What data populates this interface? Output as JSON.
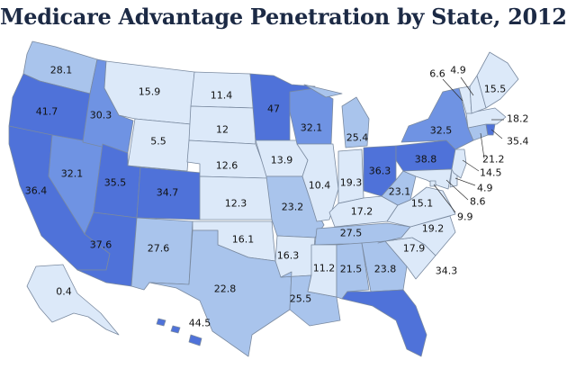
{
  "title": "Medicare Advantage Penetration by State, 2012",
  "colors": {
    "bin_lightest": "#dce9f9",
    "bin_light": "#a9c4ec",
    "bin_mid": "#6f93e3",
    "bin_dark": "#4f72d9",
    "border": "#7a8aa0",
    "text": "#111111"
  },
  "states": [
    {
      "state": "WA",
      "value": "28.1"
    },
    {
      "state": "OR",
      "value": "41.7"
    },
    {
      "state": "CA",
      "value": "36.4"
    },
    {
      "state": "NV",
      "value": "32.1"
    },
    {
      "state": "ID",
      "value": "30.3"
    },
    {
      "state": "MT",
      "value": "15.9"
    },
    {
      "state": "WY",
      "value": "5.5"
    },
    {
      "state": "UT",
      "value": "35.5"
    },
    {
      "state": "AZ",
      "value": "37.6"
    },
    {
      "state": "CO",
      "value": "34.7"
    },
    {
      "state": "NM",
      "value": "27.6"
    },
    {
      "state": "ND",
      "value": "11.4"
    },
    {
      "state": "SD",
      "value": "12"
    },
    {
      "state": "NE",
      "value": "12.6"
    },
    {
      "state": "KS",
      "value": "12.3"
    },
    {
      "state": "OK",
      "value": "16.1"
    },
    {
      "state": "TX",
      "value": "22.8"
    },
    {
      "state": "MN",
      "value": "47"
    },
    {
      "state": "IA",
      "value": "13.9"
    },
    {
      "state": "MO",
      "value": "23.2"
    },
    {
      "state": "AR",
      "value": "16.3"
    },
    {
      "state": "LA",
      "value": "25.5"
    },
    {
      "state": "WI",
      "value": "32.1"
    },
    {
      "state": "IL",
      "value": "10.4"
    },
    {
      "state": "MI",
      "value": "25.4"
    },
    {
      "state": "IN",
      "value": "19.3"
    },
    {
      "state": "OH",
      "value": "36.3"
    },
    {
      "state": "KY",
      "value": "17.2"
    },
    {
      "state": "TN",
      "value": "27.5"
    },
    {
      "state": "MS",
      "value": "11.2"
    },
    {
      "state": "AL",
      "value": "21.5"
    },
    {
      "state": "GA",
      "value": "23.8"
    },
    {
      "state": "FL",
      "value": "34.3"
    },
    {
      "state": "SC",
      "value": "17.9"
    },
    {
      "state": "NC",
      "value": "19.2"
    },
    {
      "state": "VA",
      "value": "15.1"
    },
    {
      "state": "WV",
      "value": "23.1"
    },
    {
      "state": "PA",
      "value": "38.8"
    },
    {
      "state": "NY",
      "value": "32.5"
    },
    {
      "state": "VT",
      "value": "6.6"
    },
    {
      "state": "NH",
      "value": "4.9"
    },
    {
      "state": "ME",
      "value": "15.5"
    },
    {
      "state": "MA",
      "value": "18.2"
    },
    {
      "state": "RI",
      "value": "35.4"
    },
    {
      "state": "CT",
      "value": "21.2"
    },
    {
      "state": "NJ",
      "value": "14.5"
    },
    {
      "state": "DE",
      "value": "4.9"
    },
    {
      "state": "MD",
      "value": "8.6"
    },
    {
      "state": "DC",
      "value": "9.9"
    },
    {
      "state": "AK",
      "value": "0.4"
    },
    {
      "state": "HI",
      "value": "44.5"
    }
  ]
}
